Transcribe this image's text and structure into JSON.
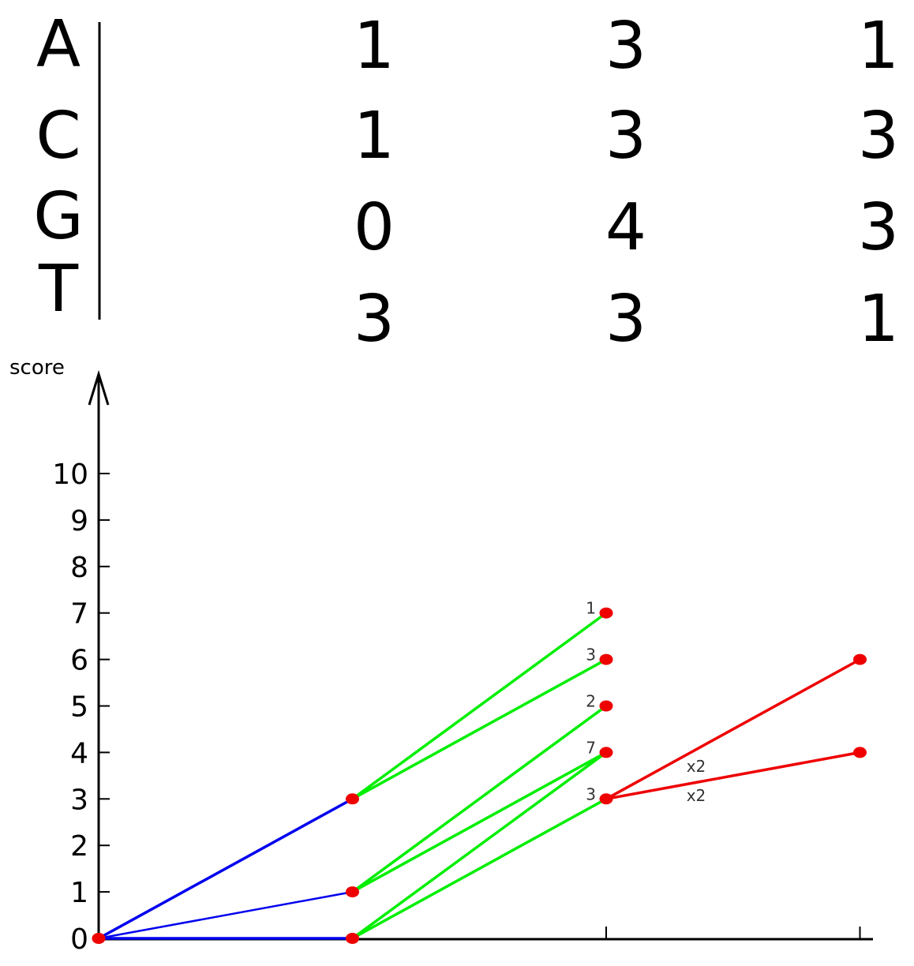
{
  "matrix": {
    "rows": [
      "A",
      "C",
      "G",
      "T"
    ],
    "values": [
      [
        "1",
        "3",
        "1"
      ],
      [
        "1",
        "3",
        "3"
      ],
      [
        "0",
        "4",
        "3"
      ],
      [
        "3",
        "3",
        "1"
      ]
    ]
  },
  "chart": {
    "ylabel": "score",
    "yticks": [
      "0",
      "1",
      "2",
      "3",
      "4",
      "5",
      "6",
      "7",
      "8",
      "9",
      "10"
    ]
  },
  "colors": {
    "blue": "#0000ee",
    "green": "#00ee00",
    "red": "#ee0000",
    "node": "#ee0000"
  },
  "chart_data": {
    "type": "line",
    "ylabel": "score",
    "ylim": [
      0,
      10
    ],
    "x": [
      0,
      1,
      2,
      3
    ],
    "edges": [
      {
        "color": "blue",
        "from": [
          0,
          0
        ],
        "to": [
          1,
          3
        ]
      },
      {
        "color": "blue",
        "from": [
          0,
          0
        ],
        "to": [
          1,
          1
        ]
      },
      {
        "color": "blue",
        "from": [
          0,
          0
        ],
        "to": [
          1,
          0
        ]
      },
      {
        "color": "green",
        "from": [
          1,
          3
        ],
        "to": [
          2,
          7
        ]
      },
      {
        "color": "green",
        "from": [
          1,
          3
        ],
        "to": [
          2,
          6
        ]
      },
      {
        "color": "green",
        "from": [
          1,
          1
        ],
        "to": [
          2,
          5
        ]
      },
      {
        "color": "green",
        "from": [
          1,
          1
        ],
        "to": [
          2,
          4
        ]
      },
      {
        "color": "green",
        "from": [
          1,
          0
        ],
        "to": [
          2,
          4
        ]
      },
      {
        "color": "green",
        "from": [
          1,
          0
        ],
        "to": [
          2,
          3
        ]
      },
      {
        "color": "red",
        "from": [
          2,
          3
        ],
        "to": [
          3,
          6
        ]
      },
      {
        "color": "red",
        "from": [
          2,
          3
        ],
        "to": [
          3,
          4
        ]
      }
    ],
    "nodes": [
      [
        0,
        0
      ],
      [
        1,
        0
      ],
      [
        1,
        1
      ],
      [
        1,
        3
      ],
      [
        2,
        3
      ],
      [
        2,
        4
      ],
      [
        2,
        5
      ],
      [
        2,
        6
      ],
      [
        2,
        7
      ],
      [
        3,
        4
      ],
      [
        3,
        6
      ]
    ],
    "node_labels": [
      {
        "x": 2,
        "y": 7,
        "text": "1"
      },
      {
        "x": 2,
        "y": 6,
        "text": "3"
      },
      {
        "x": 2,
        "y": 5,
        "text": "2"
      },
      {
        "x": 2,
        "y": 4,
        "text": "7"
      },
      {
        "x": 2,
        "y": 3,
        "text": "3"
      }
    ],
    "edge_labels": [
      "x2",
      "x2"
    ]
  }
}
